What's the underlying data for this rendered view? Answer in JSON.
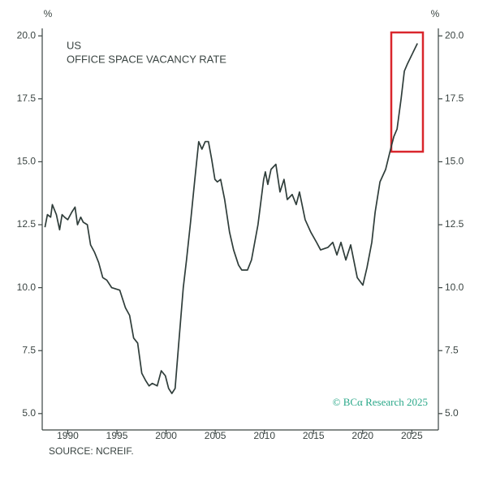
{
  "chart_data": {
    "type": "line",
    "title": "US",
    "subtitle": "OFFICE SPACE VACANCY RATE",
    "y_unit": "%",
    "y2_unit": "%",
    "source": "SOURCE: NCREIF.",
    "watermark": "© BCα Research 2025",
    "xlim": [
      1987.4,
      2027.7
    ],
    "xticks": [
      1990,
      1995,
      2000,
      2005,
      2010,
      2015,
      2020,
      2025
    ],
    "ylim": [
      4.35,
      20.2
    ],
    "yticks": [
      {
        "value": 5,
        "label": "5.0"
      },
      7.5,
      {
        "value": 10,
        "label": "10.0"
      },
      12.5,
      {
        "value": 15,
        "label": "15.0"
      },
      17.5,
      {
        "value": 20,
        "label": "20.0"
      }
    ],
    "y2lim": [
      4.35,
      20.2
    ],
    "y2ticks": [
      {
        "value": 5,
        "label": "5.0"
      },
      7.5,
      {
        "value": 10,
        "label": "10.0"
      },
      12.5,
      {
        "value": 15,
        "label": "15.0"
      },
      17.5,
      {
        "value": 20,
        "label": "20.0"
      }
    ],
    "grid": false,
    "x": [
      1987.68,
      1987.93,
      1988.26,
      1988.43,
      1988.84,
      1989.17,
      1989.42,
      1989.67,
      1990.0,
      1990.41,
      1990.74,
      1990.99,
      1991.32,
      1991.57,
      1991.99,
      1992.32,
      1992.73,
      1993.14,
      1993.56,
      1993.97,
      1994.47,
      1995.29,
      1995.87,
      1996.29,
      1996.7,
      1997.11,
      1997.53,
      1997.94,
      1998.27,
      1998.6,
      1999.1,
      1999.51,
      1999.93,
      2000.26,
      2000.59,
      2000.92,
      2001.25,
      2001.75,
      2002.08,
      2002.49,
      2002.9,
      2003.32,
      2003.65,
      2003.98,
      2004.31,
      2004.64,
      2004.97,
      2005.22,
      2005.55,
      2005.96,
      2006.46,
      2006.87,
      2007.37,
      2007.7,
      2008.28,
      2008.69,
      2009.35,
      2009.93,
      2010.1,
      2010.35,
      2010.68,
      2011.17,
      2011.59,
      2012.0,
      2012.33,
      2012.83,
      2013.24,
      2013.57,
      2014.15,
      2014.73,
      2015.31,
      2015.72,
      2016.47,
      2016.96,
      2017.38,
      2017.79,
      2018.29,
      2018.78,
      2019.45,
      2020.02,
      2020.44,
      2020.93,
      2021.27,
      2021.76,
      2022.34,
      2022.84,
      2023.17,
      2023.5,
      2023.91,
      2024.24,
      2024.57,
      2025.07,
      2025.57
    ],
    "series": [
      {
        "name": "US office space vacancy rate",
        "color": "#2f3d3a",
        "values": [
          12.4,
          12.9,
          12.8,
          13.3,
          12.9,
          12.3,
          12.9,
          12.8,
          12.7,
          13.0,
          13.2,
          12.5,
          12.8,
          12.6,
          12.5,
          11.7,
          11.4,
          11.0,
          10.4,
          10.3,
          10.0,
          9.9,
          9.2,
          8.9,
          8.0,
          7.8,
          6.6,
          6.3,
          6.1,
          6.2,
          6.1,
          6.7,
          6.5,
          6.0,
          5.8,
          6.0,
          7.6,
          10.0,
          11.1,
          12.6,
          14.2,
          15.8,
          15.5,
          15.8,
          15.8,
          15.1,
          14.3,
          14.2,
          14.3,
          13.5,
          12.2,
          11.5,
          10.9,
          10.7,
          10.7,
          11.1,
          12.5,
          14.3,
          14.6,
          14.1,
          14.7,
          14.9,
          13.8,
          14.3,
          13.5,
          13.7,
          13.3,
          13.8,
          12.7,
          12.2,
          11.8,
          11.5,
          11.6,
          11.8,
          11.3,
          11.8,
          11.1,
          11.7,
          10.4,
          10.1,
          10.8,
          11.8,
          13.0,
          14.2,
          14.7,
          15.5,
          16.0,
          16.3,
          17.5,
          18.6,
          18.9,
          19.3,
          19.7
        ]
      }
    ]
  }
}
